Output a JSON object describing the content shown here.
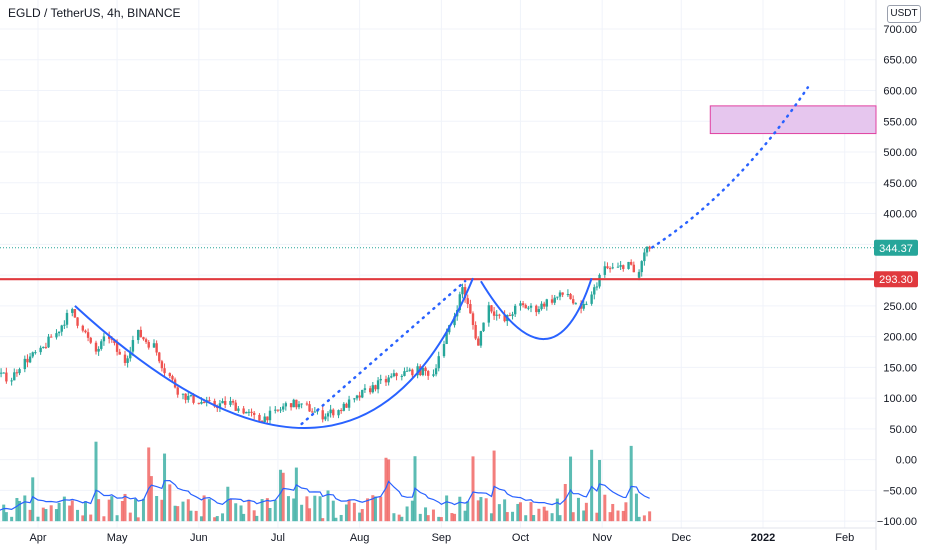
{
  "header": {
    "symbol": "EGLD / TetherUS, 4h, BINANCE"
  },
  "price_axis": {
    "unit_label": "USDT"
  },
  "colors": {
    "resistance_line": "#e0393e",
    "last_price_tag": "#26a69a",
    "pattern_curve": "#2962ff",
    "target_zone_fill": "#e6c6ee",
    "target_zone_border": "#e040a0",
    "candle_up": "#26a69a",
    "candle_down": "#ef5350",
    "volume_ma": "#2962ff"
  },
  "chart_data": {
    "type": "candlestick",
    "symbol": "EGLD / TetherUS",
    "interval": "4h",
    "exchange": "BINANCE",
    "y_ticks": [
      "700.00",
      "650.00",
      "600.00",
      "550.00",
      "500.00",
      "450.00",
      "400.00",
      "350.00",
      "300.00",
      "250.00",
      "200.00",
      "150.00",
      "100.00",
      "50.00",
      "0.00",
      "−50.00",
      "−100.00"
    ],
    "x_ticks": [
      "Apr",
      "May",
      "Jun",
      "Jul",
      "Aug",
      "Sep",
      "Oct",
      "Nov",
      "Dec",
      "2022",
      "Feb"
    ],
    "ylim": [
      -100,
      720
    ],
    "grid": true,
    "last_price": {
      "label": "344.37",
      "value": 344.37
    },
    "resistance_level": {
      "label": "293.30",
      "value": 293.3
    },
    "price_path": [
      [
        "2021-03-16",
        140
      ],
      [
        "2021-03-22",
        132
      ],
      [
        "2021-03-27",
        160
      ],
      [
        "2021-04-02",
        175
      ],
      [
        "2021-04-08",
        205
      ],
      [
        "2021-04-14",
        240
      ],
      [
        "2021-04-18",
        215
      ],
      [
        "2021-04-23",
        175
      ],
      [
        "2021-04-28",
        200
      ],
      [
        "2021-05-04",
        160
      ],
      [
        "2021-05-09",
        205
      ],
      [
        "2021-05-15",
        185
      ],
      [
        "2021-05-21",
        135
      ],
      [
        "2021-05-26",
        105
      ],
      [
        "2021-06-01",
        95
      ],
      [
        "2021-06-07",
        88
      ],
      [
        "2021-06-13",
        92
      ],
      [
        "2021-06-18",
        80
      ],
      [
        "2021-06-24",
        65
      ],
      [
        "2021-06-30",
        75
      ],
      [
        "2021-07-06",
        92
      ],
      [
        "2021-07-12",
        85
      ],
      [
        "2021-07-18",
        72
      ],
      [
        "2021-07-24",
        80
      ],
      [
        "2021-07-30",
        95
      ],
      [
        "2021-08-05",
        115
      ],
      [
        "2021-08-11",
        128
      ],
      [
        "2021-08-17",
        140
      ],
      [
        "2021-08-23",
        145
      ],
      [
        "2021-08-29",
        140
      ],
      [
        "2021-09-02",
        185
      ],
      [
        "2021-09-06",
        235
      ],
      [
        "2021-09-09",
        280
      ],
      [
        "2021-09-12",
        235
      ],
      [
        "2021-09-15",
        185
      ],
      [
        "2021-09-19",
        250
      ],
      [
        "2021-09-25",
        225
      ],
      [
        "2021-10-01",
        250
      ],
      [
        "2021-10-07",
        245
      ],
      [
        "2021-10-13",
        260
      ],
      [
        "2021-10-19",
        270
      ],
      [
        "2021-10-24",
        240
      ],
      [
        "2021-10-28",
        265
      ],
      [
        "2021-11-02",
        310
      ],
      [
        "2021-11-07",
        310
      ],
      [
        "2021-11-11",
        320
      ],
      [
        "2021-11-15",
        295
      ],
      [
        "2021-11-17",
        330
      ],
      [
        "2021-11-19",
        344.37
      ]
    ],
    "volume_note": "volume histogram with moving average at bottom of pane"
  },
  "drawings": {
    "target_zone": {
      "price_low": 530,
      "price_high": 575,
      "date_from": "2021-12-12",
      "date_to": "2022-02-20"
    },
    "left_cup": {
      "from": [
        "2021-04-15",
        250
      ],
      "bottom": [
        "2021-07-15",
        52
      ],
      "to": [
        "2021-09-13",
        295
      ]
    },
    "rising_trend": {
      "from": [
        "2021-07-10",
        58
      ],
      "to": [
        "2021-09-10",
        290
      ]
    },
    "handle": {
      "from": [
        "2021-09-16",
        290
      ],
      "bottom": [
        "2021-10-10",
        196
      ],
      "to": [
        "2021-10-28",
        295
      ]
    },
    "projection": {
      "from": [
        "2021-11-20",
        345
      ],
      "to": [
        "2022-01-18",
        605
      ]
    }
  }
}
